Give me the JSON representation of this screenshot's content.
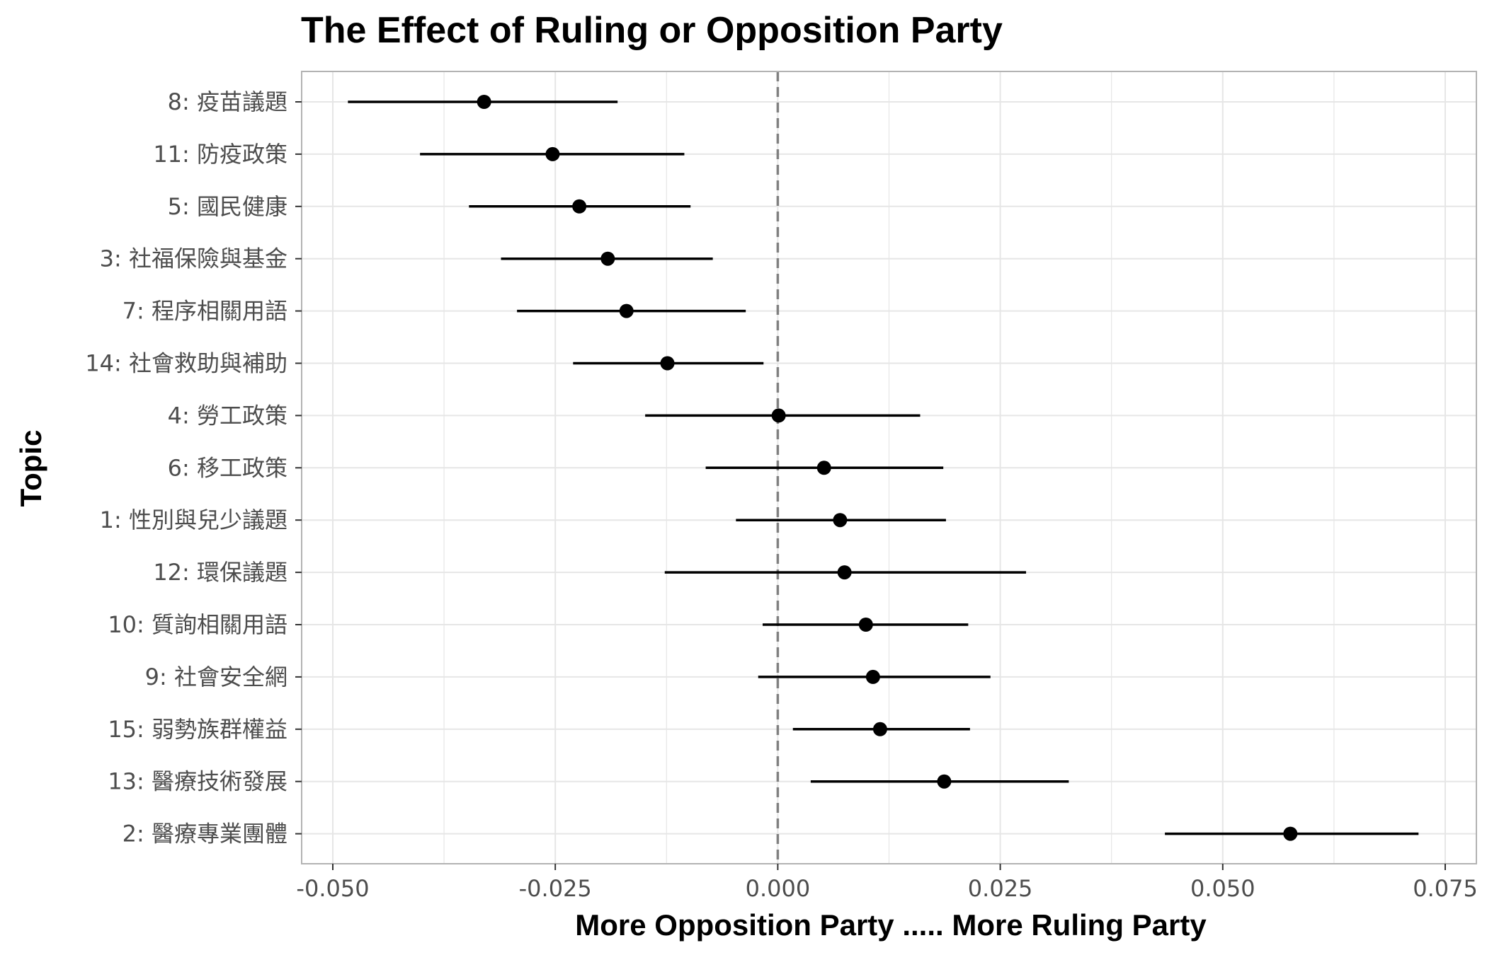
{
  "chart_data": {
    "type": "scatter",
    "subtype": "coefficient-plot-with-confidence-intervals",
    "title": "The Effect of Ruling or Opposition Party",
    "xlabel": "More Opposition Party ..... More Ruling Party",
    "ylabel": "Topic",
    "xlim": [
      -0.0535,
      0.0785
    ],
    "xticks": [
      -0.05,
      -0.025,
      0.0,
      0.025,
      0.05,
      0.075
    ],
    "xtick_labels": [
      "-0.050",
      "-0.025",
      "0.000",
      "0.025",
      "0.050",
      "0.075"
    ],
    "reference_line": {
      "x": 0.0,
      "style": "dashed",
      "color": "#808080"
    },
    "grid": true,
    "legend": "none",
    "point_color": "#000000",
    "panel_border_color": "#b3b3b3",
    "grid_color": "#e6e6e6",
    "topics": [
      {
        "label": "8: 疫苗議題",
        "estimate": -0.033,
        "ci_low": -0.0483,
        "ci_high": -0.018
      },
      {
        "label": "11: 防疫政策",
        "estimate": -0.0253,
        "ci_low": -0.0402,
        "ci_high": -0.0105
      },
      {
        "label": "5: 國民健康",
        "estimate": -0.0223,
        "ci_low": -0.0347,
        "ci_high": -0.0098
      },
      {
        "label": "3: 社福保險與基金",
        "estimate": -0.0191,
        "ci_low": -0.0311,
        "ci_high": -0.0073
      },
      {
        "label": "7: 程序相關用語",
        "estimate": -0.017,
        "ci_low": -0.0293,
        "ci_high": -0.0036
      },
      {
        "label": "14: 社會救助與補助",
        "estimate": -0.0124,
        "ci_low": -0.023,
        "ci_high": -0.0016
      },
      {
        "label": "4: 勞工政策",
        "estimate": 0.0001,
        "ci_low": -0.0149,
        "ci_high": 0.016
      },
      {
        "label": "6: 移工政策",
        "estimate": 0.0052,
        "ci_low": -0.0081,
        "ci_high": 0.0186
      },
      {
        "label": "1: 性別與兒少議題",
        "estimate": 0.007,
        "ci_low": -0.0047,
        "ci_high": 0.0189
      },
      {
        "label": "12: 環保議題",
        "estimate": 0.0075,
        "ci_low": -0.0127,
        "ci_high": 0.0279
      },
      {
        "label": "10: 質詢相關用語",
        "estimate": 0.0099,
        "ci_low": -0.0017,
        "ci_high": 0.0214
      },
      {
        "label": "9: 社會安全網",
        "estimate": 0.0107,
        "ci_low": -0.0022,
        "ci_high": 0.0239
      },
      {
        "label": "15: 弱勢族群權益",
        "estimate": 0.0115,
        "ci_low": 0.0017,
        "ci_high": 0.0216
      },
      {
        "label": "13: 醫療技術發展",
        "estimate": 0.0187,
        "ci_low": 0.0037,
        "ci_high": 0.0327
      },
      {
        "label": "2: 醫療專業團體",
        "estimate": 0.0576,
        "ci_low": 0.0435,
        "ci_high": 0.072
      }
    ]
  }
}
